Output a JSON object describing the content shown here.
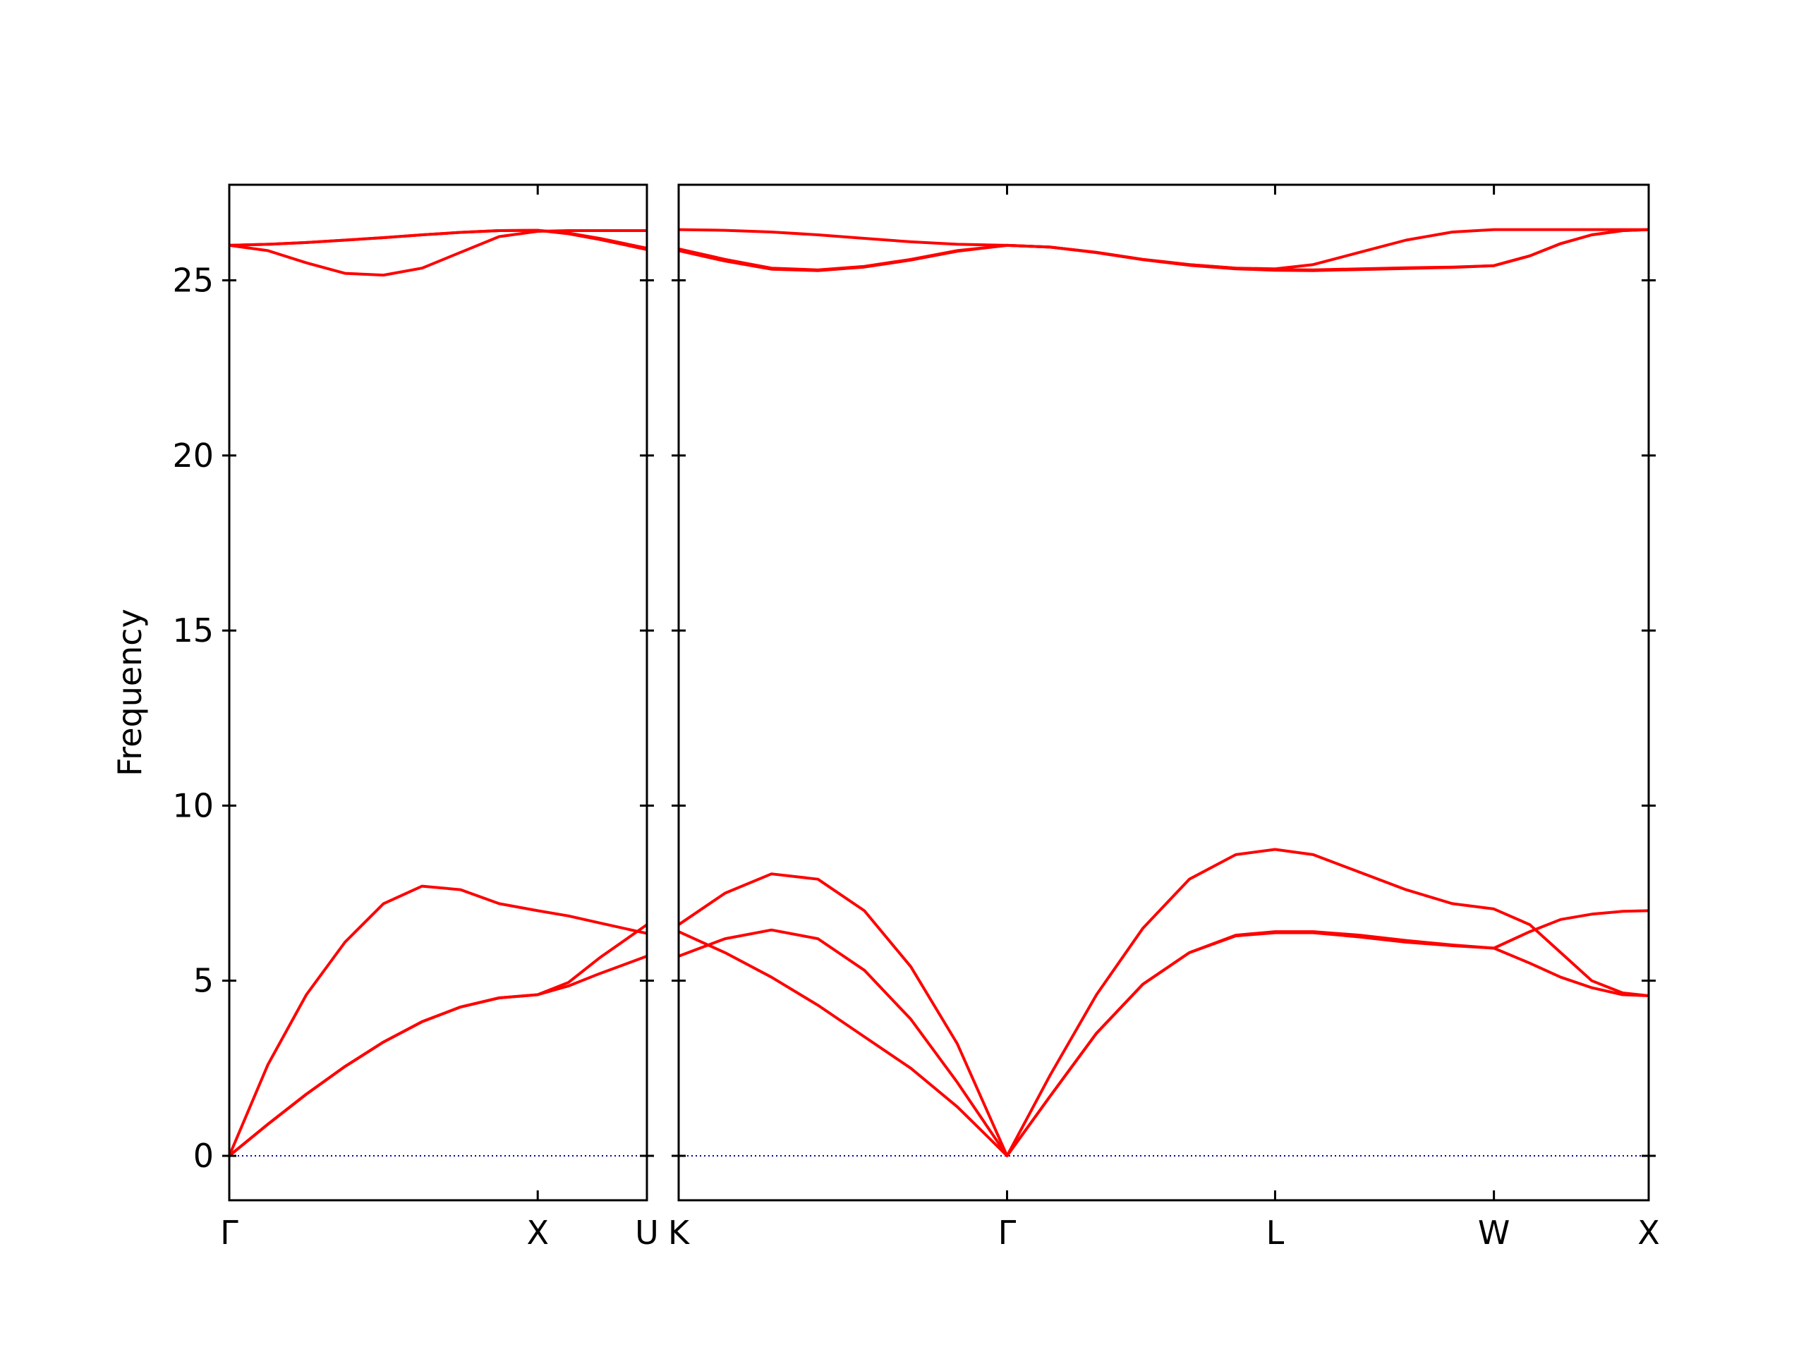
{
  "chart_data": [
    {
      "type": "line",
      "ylabel": "Frequency",
      "line_color": "#ff0000",
      "hline": 0,
      "hline_color": "#0000aa",
      "show_ytick_labels": true,
      "x": [
        0,
        0.125,
        0.25,
        0.375,
        0.5,
        0.625,
        0.75,
        0.875,
        1,
        1.1,
        1.2,
        1.354
      ],
      "xlim": [
        0,
        1.354
      ],
      "xticks": [
        {
          "value": 0,
          "label": "Γ"
        },
        {
          "value": 1,
          "label": "X"
        },
        {
          "value": 1.354,
          "label": "U"
        }
      ],
      "ylim": [
        -1.27,
        27.73
      ],
      "yticks": [
        0,
        5,
        10,
        15,
        20,
        25
      ],
      "series": [
        {
          "values": [
            0,
            0.9,
            1.76,
            2.55,
            3.25,
            3.83,
            4.25,
            4.51,
            4.6,
            4.95,
            5.65,
            6.6
          ]
        },
        {
          "values": [
            0,
            0.9,
            1.76,
            2.55,
            3.25,
            3.83,
            4.25,
            4.51,
            4.6,
            4.85,
            5.2,
            5.7
          ]
        },
        {
          "values": [
            0,
            2.6,
            4.6,
            6.1,
            7.2,
            7.7,
            7.6,
            7.2,
            7.0,
            6.85,
            6.65,
            6.35
          ]
        },
        {
          "values": [
            26,
            25.85,
            25.5,
            25.2,
            25.15,
            25.35,
            25.8,
            26.25,
            26.4,
            26.42,
            26.42,
            26.42
          ]
        },
        {
          "values": [
            26,
            26.03,
            26.08,
            26.15,
            26.22,
            26.3,
            26.37,
            26.42,
            26.43,
            26.35,
            26.2,
            25.92
          ]
        },
        {
          "values": [
            26,
            26.03,
            26.08,
            26.15,
            26.22,
            26.3,
            26.37,
            26.42,
            26.43,
            26.33,
            26.17,
            25.88
          ]
        }
      ]
    },
    {
      "type": "line",
      "line_color": "#ff0000",
      "hline": 0,
      "hline_color": "#0000aa",
      "show_ytick_labels": false,
      "x": [
        0,
        0.15,
        0.3,
        0.45,
        0.6,
        0.75,
        0.9,
        1.061,
        1.2,
        1.35,
        1.5,
        1.65,
        1.8,
        1.927,
        2.05,
        2.2,
        2.35,
        2.5,
        2.634,
        2.75,
        2.85,
        2.95,
        3.05,
        3.134
      ],
      "xlim": [
        0,
        3.134
      ],
      "xticks": [
        {
          "value": 0,
          "label": "K"
        },
        {
          "value": 1.061,
          "label": "Γ"
        },
        {
          "value": 1.927,
          "label": "L"
        },
        {
          "value": 2.634,
          "label": "W"
        },
        {
          "value": 3.134,
          "label": "X"
        }
      ],
      "ylim": [
        -1.27,
        27.73
      ],
      "yticks": [
        0,
        5,
        10,
        15,
        20,
        25
      ],
      "series": [
        {
          "values": [
            6.6,
            7.5,
            8.05,
            7.9,
            7.0,
            5.4,
            3.2,
            0,
            2.3,
            4.6,
            6.5,
            7.9,
            8.6,
            8.75,
            8.6,
            8.1,
            7.6,
            7.2,
            7.05,
            6.6,
            5.8,
            5.0,
            4.65,
            4.57
          ]
        },
        {
          "values": [
            5.7,
            6.2,
            6.45,
            6.2,
            5.3,
            3.9,
            2.1,
            0,
            1.7,
            3.5,
            4.9,
            5.8,
            6.3,
            6.4,
            6.4,
            6.3,
            6.15,
            6.02,
            5.93,
            6.4,
            6.75,
            6.9,
            6.98,
            7.0
          ]
        },
        {
          "values": [
            6.4,
            5.8,
            5.1,
            4.3,
            3.4,
            2.5,
            1.4,
            0,
            1.7,
            3.5,
            4.9,
            5.8,
            6.28,
            6.37,
            6.37,
            6.25,
            6.1,
            6.0,
            5.93,
            5.5,
            5.1,
            4.8,
            4.6,
            4.57
          ]
        },
        {
          "values": [
            26.45,
            26.43,
            26.38,
            26.3,
            26.2,
            26.1,
            26.03,
            26.0,
            25.95,
            25.8,
            25.6,
            25.45,
            25.35,
            25.33,
            25.45,
            25.8,
            26.15,
            26.38,
            26.45,
            26.45,
            26.45,
            26.45,
            26.45,
            26.45
          ]
        },
        {
          "values": [
            25.9,
            25.6,
            25.35,
            25.3,
            25.4,
            25.6,
            25.85,
            26.0,
            25.95,
            25.8,
            25.6,
            25.45,
            25.35,
            25.31,
            25.3,
            25.33,
            25.36,
            25.38,
            25.42,
            25.7,
            26.05,
            26.3,
            26.42,
            26.45
          ]
        },
        {
          "values": [
            25.85,
            25.55,
            25.32,
            25.28,
            25.38,
            25.58,
            25.83,
            26.0,
            25.95,
            25.79,
            25.59,
            25.43,
            25.33,
            25.29,
            25.28,
            25.31,
            25.34,
            25.37,
            25.42,
            25.7,
            26.05,
            26.3,
            26.42,
            26.45
          ]
        }
      ]
    }
  ]
}
